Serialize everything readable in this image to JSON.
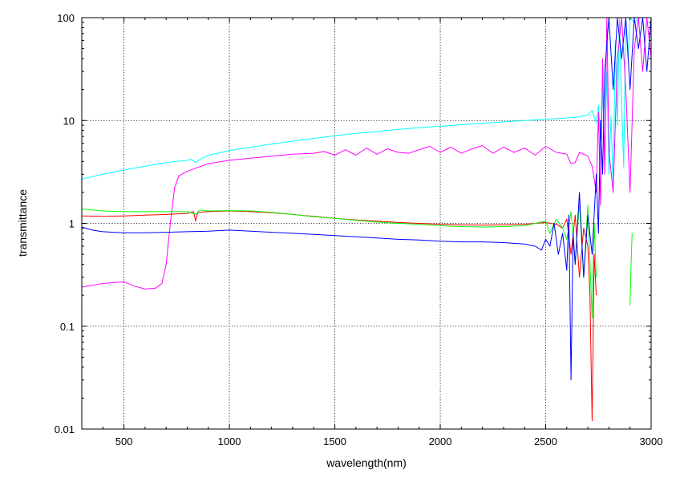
{
  "chart_data": {
    "type": "line",
    "xlabel": "wavelength(nm)",
    "ylabel": "transmittance",
    "xlim": [
      300,
      3000
    ],
    "ylim": [
      0.01,
      100
    ],
    "yscale": "log",
    "grid": true,
    "x_ticks": [
      500,
      1000,
      1500,
      2000,
      2500,
      3000
    ],
    "y_ticks": [
      0.01,
      0.1,
      1,
      10,
      100
    ],
    "x_tick_labels": [
      "500",
      "1000",
      "1500",
      "2000",
      "2500",
      "3000"
    ],
    "y_tick_labels": [
      "0.01",
      "0.1",
      "1",
      "10",
      "100"
    ],
    "series": [
      {
        "color": "#00ffff",
        "points": [
          [
            300,
            2.7
          ],
          [
            400,
            3.0
          ],
          [
            500,
            3.3
          ],
          [
            600,
            3.6
          ],
          [
            700,
            3.9
          ],
          [
            800,
            4.1
          ],
          [
            820,
            4.2
          ],
          [
            840,
            3.9
          ],
          [
            860,
            4.2
          ],
          [
            900,
            4.6
          ],
          [
            1000,
            5.1
          ],
          [
            1100,
            5.5
          ],
          [
            1200,
            5.9
          ],
          [
            1300,
            6.3
          ],
          [
            1400,
            6.7
          ],
          [
            1500,
            7.1
          ],
          [
            1600,
            7.5
          ],
          [
            1700,
            7.8
          ],
          [
            1800,
            8.2
          ],
          [
            1900,
            8.5
          ],
          [
            2000,
            8.8
          ],
          [
            2100,
            9.1
          ],
          [
            2200,
            9.4
          ],
          [
            2300,
            9.7
          ],
          [
            2400,
            10.0
          ],
          [
            2500,
            10.3
          ],
          [
            2600,
            10.6
          ],
          [
            2650,
            10.8
          ],
          [
            2700,
            11.3
          ],
          [
            2720,
            12.5
          ],
          [
            2740,
            9.5
          ],
          [
            2750,
            14.0
          ],
          [
            2760,
            7.0
          ],
          [
            2770,
            20.0
          ],
          [
            2780,
            4.0
          ],
          [
            2790,
            30.0
          ],
          [
            2800,
            3.0
          ],
          [
            2810,
            11.0
          ],
          [
            2820,
            2.2
          ],
          [
            2830,
            60.0
          ],
          [
            2840,
            9.0
          ],
          [
            2850,
            100
          ],
          [
            2860,
            15.0
          ],
          [
            2870,
            3.5
          ],
          [
            2880,
            100
          ],
          [
            2890,
            40.0
          ],
          [
            2900,
            100
          ],
          [
            2920,
            90.0
          ],
          [
            2950,
            100
          ],
          [
            2980,
            100
          ],
          [
            3000,
            100
          ]
        ]
      },
      {
        "color": "#ff00ff",
        "points": [
          [
            300,
            0.24
          ],
          [
            350,
            0.25
          ],
          [
            400,
            0.26
          ],
          [
            450,
            0.265
          ],
          [
            500,
            0.27
          ],
          [
            550,
            0.245
          ],
          [
            600,
            0.23
          ],
          [
            650,
            0.235
          ],
          [
            680,
            0.26
          ],
          [
            700,
            0.4
          ],
          [
            720,
            1.0
          ],
          [
            740,
            2.2
          ],
          [
            760,
            2.9
          ],
          [
            800,
            3.2
          ],
          [
            850,
            3.5
          ],
          [
            900,
            3.8
          ],
          [
            1000,
            4.1
          ],
          [
            1100,
            4.3
          ],
          [
            1200,
            4.5
          ],
          [
            1300,
            4.7
          ],
          [
            1400,
            4.8
          ],
          [
            1450,
            5.0
          ],
          [
            1500,
            4.6
          ],
          [
            1550,
            5.2
          ],
          [
            1600,
            4.6
          ],
          [
            1650,
            5.4
          ],
          [
            1700,
            4.7
          ],
          [
            1750,
            5.3
          ],
          [
            1800,
            4.9
          ],
          [
            1850,
            4.8
          ],
          [
            1900,
            5.2
          ],
          [
            1950,
            5.6
          ],
          [
            2000,
            4.9
          ],
          [
            2050,
            5.5
          ],
          [
            2100,
            4.8
          ],
          [
            2150,
            5.3
          ],
          [
            2200,
            5.7
          ],
          [
            2250,
            4.8
          ],
          [
            2300,
            5.5
          ],
          [
            2350,
            4.9
          ],
          [
            2400,
            5.4
          ],
          [
            2450,
            4.6
          ],
          [
            2500,
            5.6
          ],
          [
            2550,
            4.9
          ],
          [
            2600,
            4.7
          ],
          [
            2620,
            3.8
          ],
          [
            2640,
            3.9
          ],
          [
            2660,
            4.9
          ],
          [
            2700,
            4.5
          ],
          [
            2720,
            3.6
          ],
          [
            2740,
            2.0
          ],
          [
            2750,
            12.0
          ],
          [
            2760,
            1.5
          ],
          [
            2770,
            40.0
          ],
          [
            2780,
            3.0
          ],
          [
            2790,
            100
          ],
          [
            2800,
            5.0
          ],
          [
            2820,
            2.0
          ],
          [
            2840,
            40.0
          ],
          [
            2860,
            100
          ],
          [
            2880,
            20.0
          ],
          [
            2900,
            2.0
          ],
          [
            2920,
            50.0
          ],
          [
            2940,
            100
          ],
          [
            2960,
            30.0
          ],
          [
            2980,
            100
          ],
          [
            3000,
            40.0
          ]
        ]
      },
      {
        "color": "#ff0000",
        "points": [
          [
            300,
            1.18
          ],
          [
            400,
            1.17
          ],
          [
            500,
            1.18
          ],
          [
            600,
            1.2
          ],
          [
            700,
            1.22
          ],
          [
            800,
            1.25
          ],
          [
            830,
            1.3
          ],
          [
            840,
            1.05
          ],
          [
            850,
            1.28
          ],
          [
            900,
            1.3
          ],
          [
            1000,
            1.32
          ],
          [
            1100,
            1.3
          ],
          [
            1200,
            1.27
          ],
          [
            1300,
            1.22
          ],
          [
            1400,
            1.17
          ],
          [
            1500,
            1.12
          ],
          [
            1600,
            1.08
          ],
          [
            1700,
            1.05
          ],
          [
            1800,
            1.02
          ],
          [
            1900,
            1.0
          ],
          [
            2000,
            0.98
          ],
          [
            2100,
            0.97
          ],
          [
            2200,
            0.96
          ],
          [
            2300,
            0.97
          ],
          [
            2400,
            0.98
          ],
          [
            2450,
            1.0
          ],
          [
            2500,
            1.02
          ],
          [
            2550,
            0.98
          ],
          [
            2580,
            0.9
          ],
          [
            2600,
            1.1
          ],
          [
            2620,
            0.5
          ],
          [
            2640,
            1.2
          ],
          [
            2660,
            0.3
          ],
          [
            2680,
            0.9
          ],
          [
            2700,
            0.6
          ],
          [
            2710,
            0.2
          ],
          [
            2720,
            0.012
          ],
          [
            2730,
            0.5
          ],
          [
            2740,
            0.2
          ]
        ]
      },
      {
        "color": "#00ff00",
        "points": [
          [
            300,
            1.38
          ],
          [
            400,
            1.32
          ],
          [
            500,
            1.3
          ],
          [
            600,
            1.3
          ],
          [
            700,
            1.3
          ],
          [
            800,
            1.3
          ],
          [
            840,
            1.22
          ],
          [
            860,
            1.35
          ],
          [
            900,
            1.32
          ],
          [
            1000,
            1.33
          ],
          [
            1100,
            1.32
          ],
          [
            1200,
            1.28
          ],
          [
            1300,
            1.22
          ],
          [
            1400,
            1.16
          ],
          [
            1500,
            1.12
          ],
          [
            1600,
            1.07
          ],
          [
            1700,
            1.03
          ],
          [
            1800,
            1.0
          ],
          [
            1900,
            0.98
          ],
          [
            2000,
            0.95
          ],
          [
            2100,
            0.93
          ],
          [
            2200,
            0.92
          ],
          [
            2300,
            0.93
          ],
          [
            2400,
            0.95
          ],
          [
            2500,
            1.05
          ],
          [
            2520,
            0.8
          ],
          [
            2550,
            1.1
          ],
          [
            2580,
            0.9
          ],
          [
            2600,
            0.7
          ],
          [
            2620,
            1.3
          ],
          [
            2640,
            0.4
          ],
          [
            2660,
            1.6
          ],
          [
            2680,
            0.3
          ],
          [
            2700,
            1.5
          ],
          [
            2720,
            0.12
          ],
          [
            2730,
            1.0
          ],
          [
            2740,
            0.3
          ]
        ]
      },
      {
        "color": "#0000ff",
        "points": [
          [
            300,
            0.92
          ],
          [
            350,
            0.86
          ],
          [
            400,
            0.83
          ],
          [
            450,
            0.82
          ],
          [
            500,
            0.81
          ],
          [
            600,
            0.81
          ],
          [
            700,
            0.82
          ],
          [
            800,
            0.83
          ],
          [
            900,
            0.84
          ],
          [
            1000,
            0.86
          ],
          [
            1100,
            0.84
          ],
          [
            1200,
            0.82
          ],
          [
            1300,
            0.8
          ],
          [
            1400,
            0.78
          ],
          [
            1500,
            0.76
          ],
          [
            1600,
            0.74
          ],
          [
            1700,
            0.72
          ],
          [
            1800,
            0.7
          ],
          [
            1900,
            0.69
          ],
          [
            2000,
            0.67
          ],
          [
            2100,
            0.66
          ],
          [
            2200,
            0.66
          ],
          [
            2300,
            0.65
          ],
          [
            2400,
            0.63
          ],
          [
            2450,
            0.6
          ],
          [
            2480,
            0.55
          ],
          [
            2500,
            0.7
          ],
          [
            2520,
            0.6
          ],
          [
            2540,
            1.0
          ],
          [
            2560,
            0.5
          ],
          [
            2580,
            0.8
          ],
          [
            2600,
            0.35
          ],
          [
            2610,
            1.2
          ],
          [
            2620,
            0.03
          ],
          [
            2630,
            0.8
          ],
          [
            2640,
            0.4
          ],
          [
            2660,
            2.0
          ],
          [
            2680,
            0.3
          ],
          [
            2700,
            1.2
          ],
          [
            2720,
            0.5
          ],
          [
            2740,
            3.0
          ],
          [
            2750,
            0.8
          ],
          [
            2760,
            10.0
          ],
          [
            2770,
            3.0
          ],
          [
            2780,
            30.0
          ],
          [
            2800,
            100
          ],
          [
            2820,
            20.0
          ],
          [
            2840,
            100
          ],
          [
            2860,
            40.0
          ],
          [
            2880,
            100
          ],
          [
            2900,
            20.0
          ],
          [
            2920,
            100
          ],
          [
            2940,
            50.0
          ],
          [
            2960,
            100
          ],
          [
            2980,
            30.0
          ],
          [
            3000,
            100
          ]
        ]
      },
      {
        "color": "#00ff00",
        "points": [
          [
            2900,
            0.16
          ],
          [
            2905,
            0.4
          ],
          [
            2910,
            0.8
          ]
        ]
      }
    ]
  }
}
